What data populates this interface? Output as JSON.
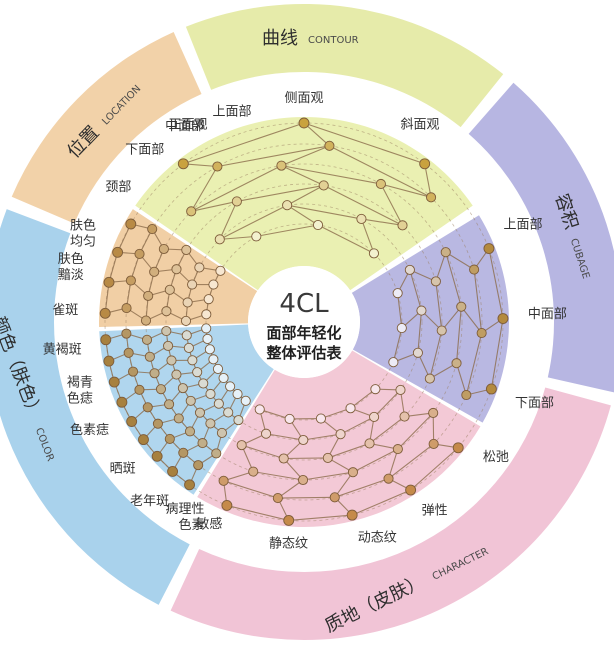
{
  "center": {
    "code": "4CL",
    "title_line1": "面部年轻化",
    "title_line2": "整体评估表"
  },
  "categories": [
    {
      "key": "contour",
      "name_zh": "曲线",
      "name_en": "CONTOUR",
      "outer_color": "#e6ebaa",
      "inner_color": "#eaf0b2",
      "node_dark": "#c9a23f",
      "node_light": "#f3f1cf",
      "items": [
        "正面观",
        "侧面观",
        "斜面观"
      ]
    },
    {
      "key": "cubage",
      "name_zh": "容积",
      "name_en": "CUBAGE",
      "outer_color": "#b7b6e2",
      "inner_color": "#b9b8e2",
      "node_dark": "#b48a3e",
      "node_light": "#ecebf6",
      "items": [
        "上面部",
        "中面部",
        "下面部"
      ]
    },
    {
      "key": "character",
      "name_zh": "质地（皮肤）",
      "name_en": "CHARACTER",
      "outer_color": "#f1c4d6",
      "inner_color": "#f3c9d6",
      "node_dark": "#c58a4a",
      "node_light": "#f8e6ec",
      "items": [
        "松弛",
        "弹性",
        "动态纹",
        "静态纹",
        "敏感"
      ]
    },
    {
      "key": "color",
      "name_zh": "颜色（肤色）",
      "name_en": "COLOR",
      "outer_color": "#a9d2ec",
      "inner_color": "#b0d6ee",
      "node_dark": "#a7813f",
      "node_light": "#e6f1f8",
      "items": [
        "病理性色素",
        "老年斑",
        "晒斑",
        "色素痣",
        "褐青色痣",
        "黄褐斑",
        "雀斑",
        "肤色黯淡",
        "肤色均匀"
      ]
    },
    {
      "key": "location",
      "name_zh": "位置",
      "name_en": "LOCATION",
      "outer_color": "#f2d2a9",
      "inner_color": "#f1cfa5",
      "node_dark": "#b88a45",
      "node_light": "#f7e7d1",
      "items": [
        "颈部",
        "下面部",
        "中面部",
        "上面部"
      ]
    }
  ]
}
